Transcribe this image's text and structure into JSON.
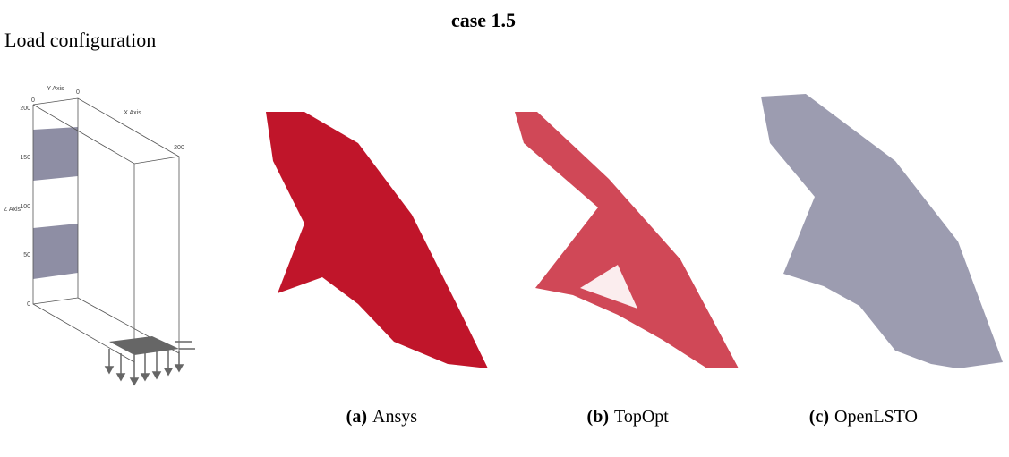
{
  "title": "case 1.5",
  "load_panel": {
    "label": "Load configuration",
    "axes": {
      "y_axis": "Y Axis",
      "x_axis": "X Axis",
      "z_axis": "Z Axis",
      "y_origin": "0",
      "x_origin": "0",
      "x_end": "200",
      "z_ticks": [
        "200",
        "150",
        "100",
        "50",
        "0"
      ]
    }
  },
  "subfigures": [
    {
      "tag": "(a)",
      "name": "Ansys"
    },
    {
      "tag": "(b)",
      "name": "TopOpt"
    },
    {
      "tag": "(c)",
      "name": "OpenLSTO"
    }
  ]
}
